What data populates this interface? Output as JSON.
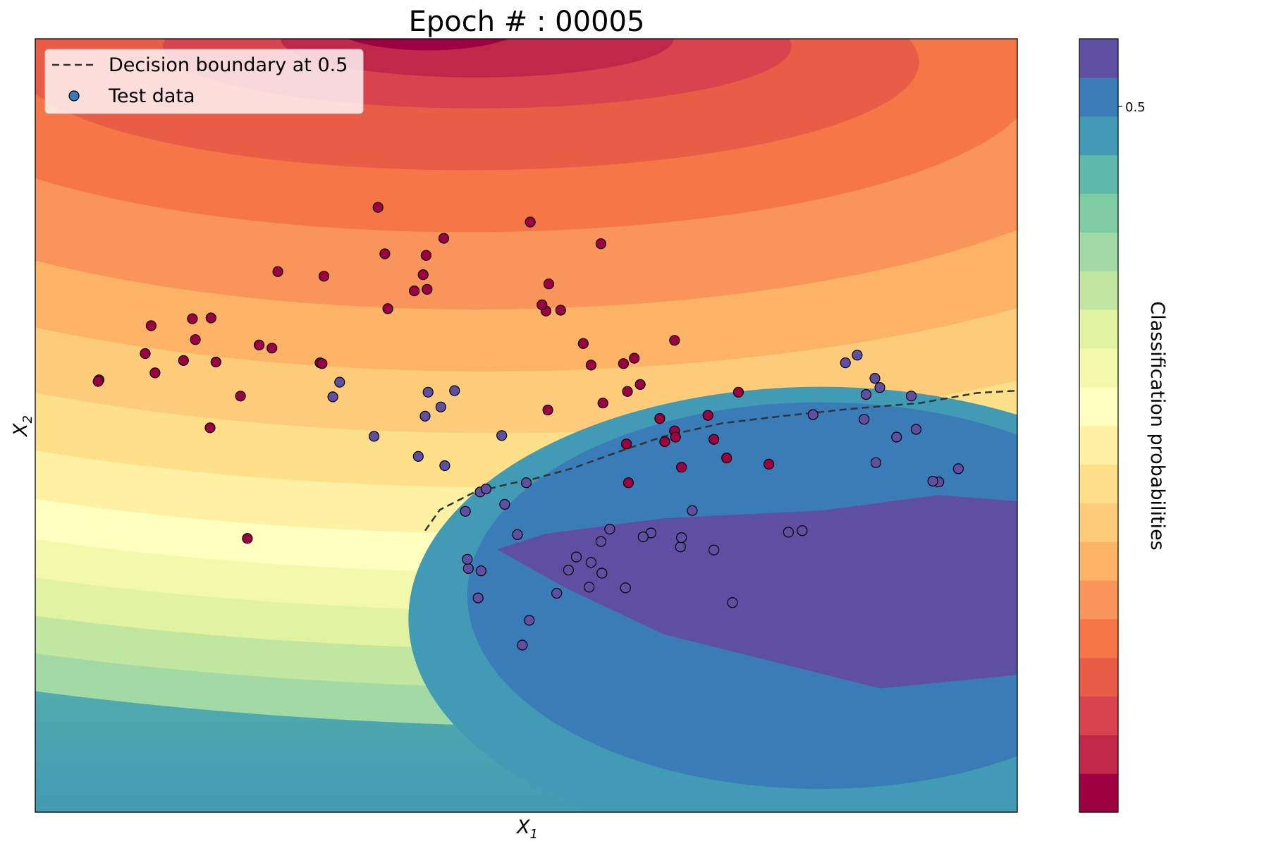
{
  "chart_data": {
    "type": "contour-scatter",
    "title": "Epoch # : 00005",
    "xlabel": "X_1",
    "ylabel": "X_2",
    "xlim": [
      0,
      1
    ],
    "ylim": [
      0,
      1
    ],
    "grid": false,
    "legend": {
      "placement": "top-left",
      "entries": [
        {
          "label": "Decision boundary at 0.5",
          "style": "dashed-line"
        },
        {
          "label": "Test data",
          "style": "marker"
        }
      ]
    },
    "colorbar": {
      "label": "Classification probabilities",
      "tick_labels": [
        "0.5"
      ],
      "levels": [
        "#9e0142",
        "#c0284a",
        "#d8434e",
        "#e95d47",
        "#f57748",
        "#f9955a",
        "#fdb365",
        "#fdcc7a",
        "#fee08b",
        "#fff1a4",
        "#ffffbf",
        "#f3f9ab",
        "#e1f3a0",
        "#c1e6a0",
        "#a2d9a4",
        "#7ecba4",
        "#5fb9a8",
        "#419bb4",
        "#3a7cb8",
        "#5e4fa2"
      ]
    },
    "regions": [
      {
        "prob": 0.0,
        "color": "#9e0142",
        "cx": 0.4,
        "cy": 1.02,
        "rx": 0.1,
        "ry": 0.035
      },
      {
        "prob": 0.05,
        "color": "#c0284a",
        "cx": 0.45,
        "cy": 1.0,
        "rx": 0.2,
        "ry": 0.05
      },
      {
        "prob": 0.1,
        "color": "#d8434e",
        "cx": 0.45,
        "cy": 0.99,
        "rx": 0.32,
        "ry": 0.08
      },
      {
        "prob": 0.15,
        "color": "#e95d47",
        "cx": 0.44,
        "cy": 0.97,
        "rx": 0.46,
        "ry": 0.14
      },
      {
        "prob": 0.2,
        "color": "#f57748",
        "cx": 0.44,
        "cy": 0.95,
        "rx": 0.58,
        "ry": 0.2
      },
      {
        "prob": 0.25,
        "color": "#f9955a",
        "cx": 0.45,
        "cy": 0.92,
        "rx": 0.7,
        "ry": 0.27
      },
      {
        "prob": 0.3,
        "color": "#fdb365",
        "cx": 0.46,
        "cy": 0.9,
        "rx": 0.82,
        "ry": 0.33
      },
      {
        "prob": 0.35,
        "color": "#fdcc7a",
        "cx": 0.47,
        "cy": 0.88,
        "rx": 0.94,
        "ry": 0.39
      },
      {
        "prob": 0.4,
        "color": "#fee08b",
        "cx": 0.48,
        "cy": 0.86,
        "rx": 1.06,
        "ry": 0.44
      },
      {
        "prob": 0.45,
        "color": "#fff1a4",
        "cx": 0.49,
        "cy": 0.85,
        "rx": 1.17,
        "ry": 0.49
      },
      {
        "prob": 0.5,
        "color": "#ffffbf",
        "cx": 0.5,
        "cy": 0.84,
        "rx": 1.27,
        "ry": 0.53
      },
      {
        "prob": 0.55,
        "color": "#f3f9ab",
        "cx": 0.52,
        "cy": 0.83,
        "rx": 1.36,
        "ry": 0.57
      },
      {
        "prob": 0.6,
        "color": "#e1f3a0",
        "cx": 0.54,
        "cy": 0.82,
        "rx": 1.45,
        "ry": 0.61
      },
      {
        "prob": 0.65,
        "color": "#c1e6a0",
        "cx": 0.56,
        "cy": 0.81,
        "rx": 1.53,
        "ry": 0.65
      },
      {
        "prob": 0.7,
        "color": "#a2d9a4",
        "cx": 0.58,
        "cy": 0.8,
        "rx": 1.61,
        "ry": 0.69
      }
    ],
    "boundary": [
      {
        "x": 0.397,
        "y": 0.364
      },
      {
        "x": 0.412,
        "y": 0.391
      },
      {
        "x": 0.446,
        "y": 0.413
      },
      {
        "x": 0.484,
        "y": 0.425
      },
      {
        "x": 0.508,
        "y": 0.431
      },
      {
        "x": 0.548,
        "y": 0.445
      },
      {
        "x": 0.594,
        "y": 0.466
      },
      {
        "x": 0.64,
        "y": 0.486
      },
      {
        "x": 0.7,
        "y": 0.503
      },
      {
        "x": 0.76,
        "y": 0.512
      },
      {
        "x": 0.826,
        "y": 0.521
      },
      {
        "x": 0.901,
        "y": 0.529
      },
      {
        "x": 0.959,
        "y": 0.542
      },
      {
        "x": 1.0,
        "y": 0.545
      }
    ],
    "series": [
      {
        "color": "#9e0142",
        "x": [
          0.349,
          0.504,
          0.356,
          0.416,
          0.398,
          0.395,
          0.386,
          0.399,
          0.247,
          0.294,
          0.359,
          0.118,
          0.16,
          0.163,
          0.112,
          0.122,
          0.065,
          0.241,
          0.228,
          0.179,
          0.184,
          0.209,
          0.29,
          0.151,
          0.292,
          0.178,
          0.064,
          0.523,
          0.576,
          0.535,
          0.52,
          0.516,
          0.558,
          0.566,
          0.61,
          0.599,
          0.578,
          0.636,
          0.641,
          0.651,
          0.603,
          0.616,
          0.522,
          0.602,
          0.716,
          0.685,
          0.652,
          0.691,
          0.704,
          0.651,
          0.747,
          0.658,
          0.604,
          0.216
        ],
        "y": [
          0.782,
          0.763,
          0.722,
          0.742,
          0.72,
          0.695,
          0.674,
          0.676,
          0.699,
          0.693,
          0.651,
          0.629,
          0.638,
          0.611,
          0.593,
          0.568,
          0.559,
          0.6,
          0.604,
          0.639,
          0.582,
          0.538,
          0.581,
          0.584,
          0.58,
          0.497,
          0.557,
          0.683,
          0.735,
          0.649,
          0.648,
          0.656,
          0.606,
          0.578,
          0.587,
          0.58,
          0.529,
          0.509,
          0.479,
          0.493,
          0.544,
          0.553,
          0.52,
          0.476,
          0.543,
          0.513,
          0.485,
          0.482,
          0.458,
          0.61,
          0.45,
          0.446,
          0.426,
          0.354
        ]
      },
      {
        "color": "#5e4fa2",
        "x": [
          0.31,
          0.303,
          0.4,
          0.413,
          0.427,
          0.397,
          0.345,
          0.39,
          0.417,
          0.475,
          0.453,
          0.5,
          0.459,
          0.478,
          0.438,
          0.825,
          0.892,
          0.846,
          0.86,
          0.792,
          0.877,
          0.92,
          0.94,
          0.856,
          0.914,
          0.897,
          0.781,
          0.767,
          0.691,
          0.669,
          0.657,
          0.627,
          0.566,
          0.576,
          0.577,
          0.543,
          0.551,
          0.601,
          0.531,
          0.564,
          0.496,
          0.503,
          0.451,
          0.441,
          0.44,
          0.454,
          0.491,
          0.619,
          0.585,
          0.658,
          0.837,
          0.855,
          0.844,
          0.71
        ],
        "y": [
          0.556,
          0.537,
          0.543,
          0.524,
          0.545,
          0.512,
          0.486,
          0.46,
          0.448,
          0.487,
          0.414,
          0.426,
          0.418,
          0.398,
          0.389,
          0.581,
          0.538,
          0.54,
          0.549,
          0.514,
          0.485,
          0.427,
          0.444,
          0.452,
          0.428,
          0.495,
          0.364,
          0.362,
          0.339,
          0.39,
          0.343,
          0.361,
          0.323,
          0.35,
          0.309,
          0.313,
          0.33,
          0.29,
          0.283,
          0.291,
          0.216,
          0.248,
          0.277,
          0.315,
          0.327,
          0.312,
          0.359,
          0.356,
          0.366,
          0.355,
          0.591,
          0.561,
          0.508,
          0.271
        ]
      }
    ]
  }
}
